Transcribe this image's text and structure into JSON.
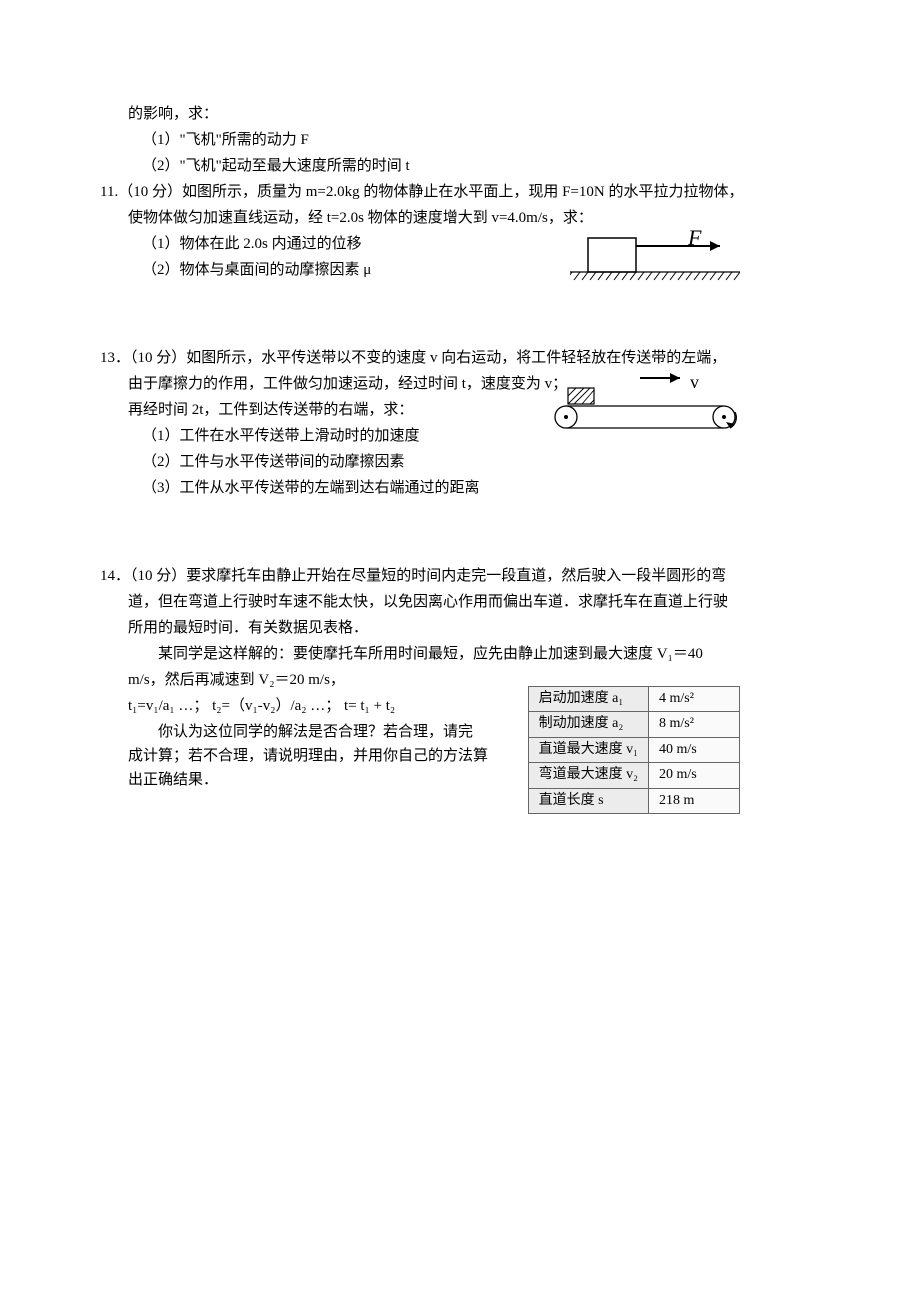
{
  "q10_cont": {
    "line0": "的影响，求：",
    "line1": "（1）\"飞机\"所需的动力 F",
    "line2": "（2）\"飞机\"起动至最大速度所需的时间 t"
  },
  "q11": {
    "stem_a": "11.（10 分）如图所示，质量为 m=2.0kg 的物体静止在水平面上，现用 F=10N 的水平拉力拉物体，",
    "stem_b": "使物体做匀加速直线运动，经 t=2.0s 物体的速度增大到 v=4.0m/s，求：",
    "p1": "（1）物体在此 2.0s 内通过的位移",
    "p2": "（2）物体与桌面间的动摩擦因素 μ",
    "figure": {
      "label_F": "F",
      "block_stroke": "#000000",
      "arrow_stroke": "#000000",
      "hatch_stroke": "#000000"
    }
  },
  "q13": {
    "stem_a": "13．（10 分）如图所示，水平传送带以不变的速度 v 向右运动，将工件轻轻放在传送带的左端，",
    "stem_b": "由于摩擦力的作用，工件做匀加速运动，经过时间 t，速度变为 v；",
    "stem_c": "再经时间 2t，工件到达传送带的右端，求：",
    "p1": "（1）工件在水平传送带上滑动时的加速度",
    "p2": "（2）工件与水平传送带间的动摩擦因素",
    "p3": "（3）工件从水平传送带的左端到达右端通过的距离",
    "figure": {
      "label_v": "v",
      "stroke": "#000000",
      "hatch": "#000000"
    }
  },
  "q14": {
    "stem_a": "14．（10 分）要求摩托车由静止开始在尽量短的时间内走完一段直道，然后驶入一段半圆形的弯",
    "stem_b": "道，但在弯道上行驶时车速不能太快，以免因离心作用而偏出车道．求摩托车在直道上行驶",
    "stem_c": "所用的最短时间．有关数据见表格．",
    "para2_a": "某同学是这样解的：要使摩托车所用时间最短，应先由静止加速到最大速度 V₁＝40",
    "para2_b": "m/s，然后再减速到 V₂＝20 m/s，",
    "eqline": "t₁=v₁/a₁ …；   t₂=（v₁-v₂）/a₂ …；    t= t₁ + t₂",
    "para3_a": "你认为这位同学的解法是否合理？若合理，请完",
    "para3_b": "成计算；若不合理，请说明理由，并用你自己的方法算",
    "para3_c": "出正确结果．",
    "table": {
      "rows": [
        {
          "label": "启动加速度 a₁",
          "value": "4 m/s²"
        },
        {
          "label": "制动加速度 a₂",
          "value": "8 m/s²"
        },
        {
          "label": "直道最大速度 v₁",
          "value": "40 m/s"
        },
        {
          "label": "弯道最大速度 v₂",
          "value": "20 m/s"
        },
        {
          "label": "直道长度 s",
          "value": "218 m"
        }
      ],
      "border_color": "#666666",
      "bg_label": "#ececec",
      "bg_value": "#fafafa",
      "font_size": 14
    }
  }
}
